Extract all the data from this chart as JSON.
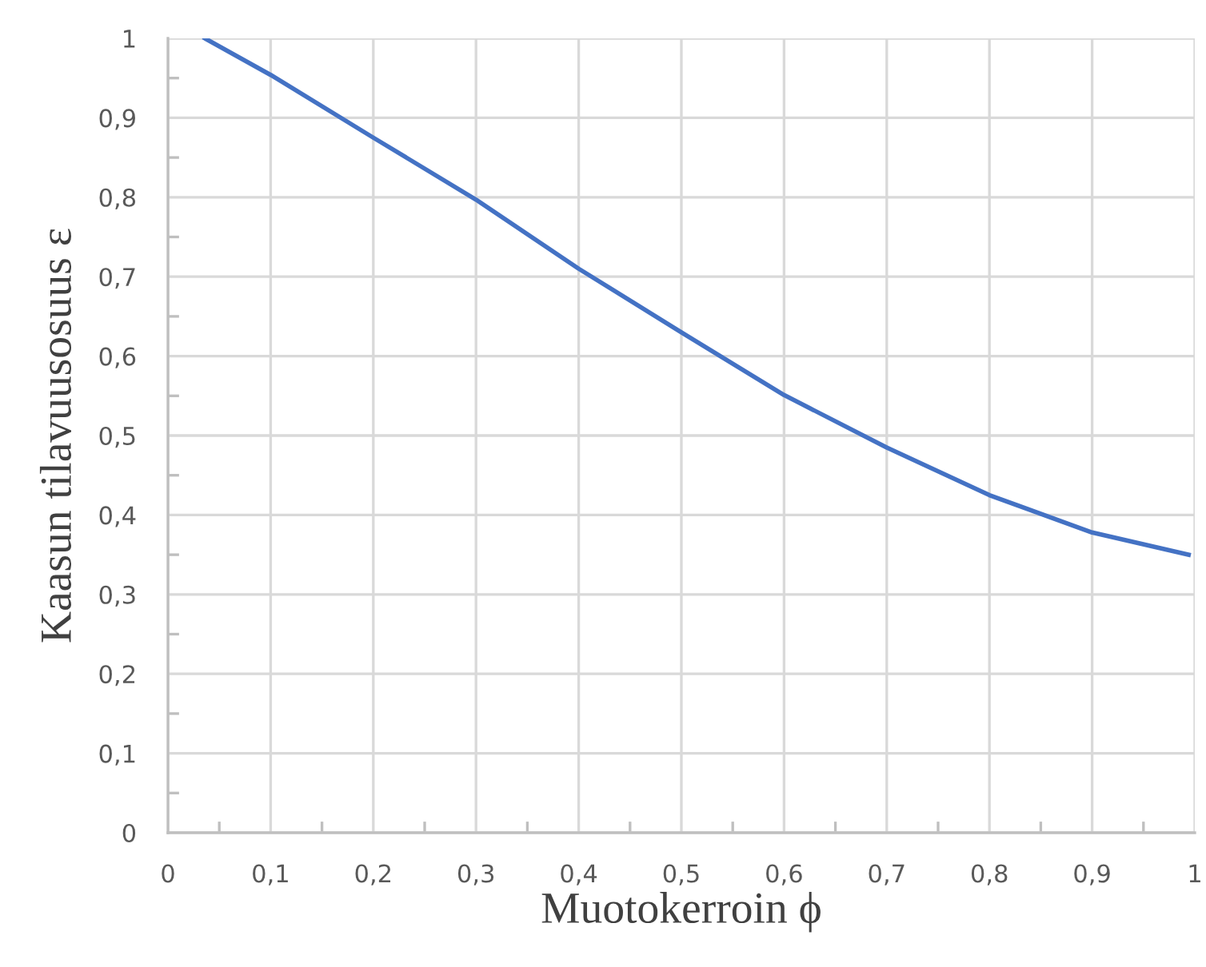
{
  "chart_data": {
    "type": "line",
    "xlabel": "Muotokerroin ϕ",
    "ylabel": "Kaasun tilavuusosuus ε",
    "x": [
      0.036,
      0.1,
      0.2,
      0.3,
      0.4,
      0.5,
      0.6,
      0.7,
      0.8,
      0.9,
      0.994
    ],
    "series": [
      {
        "color": "#4472c4",
        "values": [
          1.0,
          0.954,
          0.875,
          0.797,
          0.71,
          0.63,
          0.551,
          0.485,
          0.425,
          0.378,
          0.35
        ]
      }
    ],
    "xlim": [
      0,
      1
    ],
    "ylim": [
      0,
      1
    ],
    "xticks": [
      0,
      {
        "value": 0.05,
        "label": null
      },
      {
        "value": 0.1,
        "label": "0,1"
      },
      {
        "value": 0.15,
        "label": null
      },
      {
        "value": 0.2,
        "label": "0,2"
      },
      {
        "value": 0.25,
        "label": null
      },
      {
        "value": 0.3,
        "label": "0,3"
      },
      {
        "value": 0.35,
        "label": null
      },
      {
        "value": 0.4,
        "label": "0,4"
      },
      {
        "value": 0.45,
        "label": null
      },
      {
        "value": 0.5,
        "label": "0,5"
      },
      {
        "value": 0.55,
        "label": null
      },
      {
        "value": 0.6,
        "label": "0,6"
      },
      {
        "value": 0.65,
        "label": null
      },
      {
        "value": 0.7,
        "label": "0,7"
      },
      {
        "value": 0.75,
        "label": null
      },
      {
        "value": 0.8,
        "label": "0,8"
      },
      {
        "value": 0.85,
        "label": null
      },
      {
        "value": 0.9,
        "label": "0,9"
      },
      {
        "value": 0.95,
        "label": null
      },
      1
    ],
    "yticks": [
      0,
      {
        "value": 0.05,
        "label": null
      },
      {
        "value": 0.1,
        "label": "0,1"
      },
      {
        "value": 0.15,
        "label": null
      },
      {
        "value": 0.2,
        "label": "0,2"
      },
      {
        "value": 0.25,
        "label": null
      },
      {
        "value": 0.3,
        "label": "0,3"
      },
      {
        "value": 0.35,
        "label": null
      },
      {
        "value": 0.4,
        "label": "0,4"
      },
      {
        "value": 0.45,
        "label": null
      },
      {
        "value": 0.5,
        "label": "0,5"
      },
      {
        "value": 0.55,
        "label": null
      },
      {
        "value": 0.6,
        "label": "0,6"
      },
      {
        "value": 0.65,
        "label": null
      },
      {
        "value": 0.7,
        "label": "0,7"
      },
      {
        "value": 0.75,
        "label": null
      },
      {
        "value": 0.8,
        "label": "0,8"
      },
      {
        "value": 0.85,
        "label": null
      },
      {
        "value": 0.9,
        "label": "0,9"
      },
      {
        "value": 0.95,
        "label": null
      },
      1
    ],
    "grid": true,
    "marker": "none",
    "line_style": "solid"
  }
}
